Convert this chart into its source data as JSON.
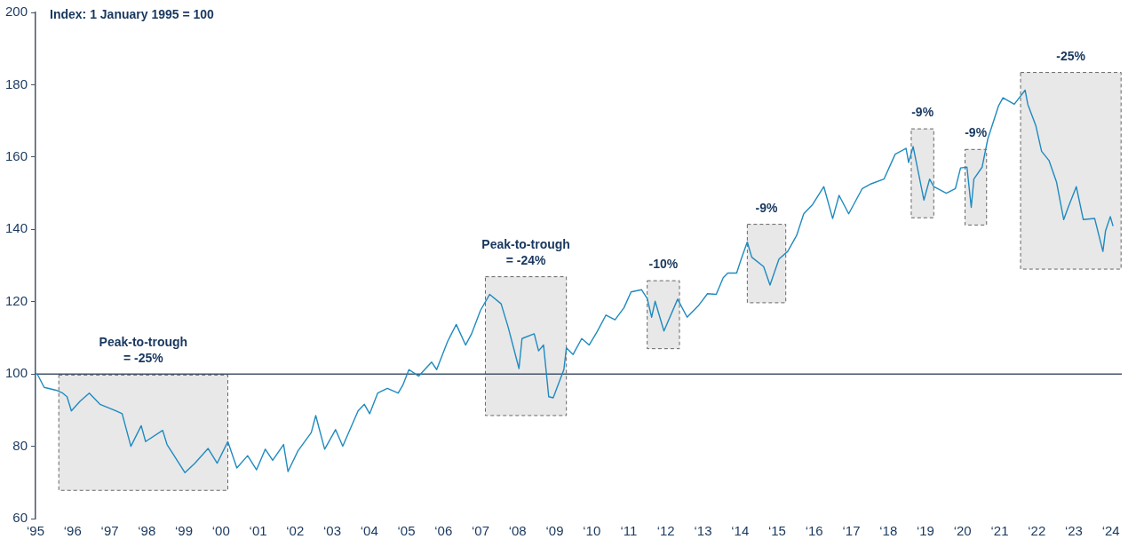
{
  "chart_data": {
    "type": "line",
    "title": "Index: 1 January 1995 = 100",
    "x": [
      "1995-01-01",
      "1995-01-19",
      "1995-03-27",
      "1995-07-23",
      "1995-09-20",
      "1995-11-07",
      "1995-12-20",
      "1996-03-13",
      "1996-06-13",
      "1996-09-27",
      "1997-03-02",
      "1997-05-03",
      "1997-07-28",
      "1997-11-07",
      "1997-12-20",
      "1998-06-06",
      "1998-07-19",
      "1999-01-12",
      "1999-04-19",
      "1999-08-28",
      "1999-11-25",
      "2000-03-09",
      "2000-06-06",
      "2000-09-20",
      "2000-12-17",
      "2001-03-13",
      "2001-05-25",
      "2001-09-09",
      "2001-10-23",
      "2002-01-28",
      "2002-06-09",
      "2002-07-23",
      "2002-10-19",
      "2003-02-03",
      "2003-04-15",
      "2003-09-13",
      "2003-11-14",
      "2004-01-05",
      "2004-03-24",
      "2004-06-27",
      "2004-10-12",
      "2004-11-25",
      "2005-01-26",
      "2005-05-03",
      "2005-09-06",
      "2005-10-26",
      "2006-02-11",
      "2006-05-07",
      "2006-08-07",
      "2006-10-05",
      "2007-01-01",
      "2007-04-01",
      "2007-07-23",
      "2007-10-01",
      "2008-01-15",
      "2008-02-14",
      "2008-06-13",
      "2008-07-26",
      "2008-09-13",
      "2008-11-03",
      "2008-12-17",
      "2009-04-01",
      "2009-04-26",
      "2009-07-01",
      "2009-09-24",
      "2009-12-06",
      "2010-02-21",
      "2010-05-21",
      "2010-08-18",
      "2010-11-14",
      "2011-01-23",
      "2011-05-07",
      "2011-07-01",
      "2011-08-14",
      "2011-09-17",
      "2011-12-13",
      "2012-04-26",
      "2012-07-28",
      "2012-11-14",
      "2013-02-14",
      "2013-05-11",
      "2013-07-19",
      "2013-09-02",
      "2013-11-28",
      "2014-01-12",
      "2014-03-13",
      "2014-04-26",
      "2014-08-21",
      "2014-10-23",
      "2015-01-19",
      "2015-04-15",
      "2015-07-12",
      "2015-09-20",
      "2015-12-17",
      "2016-04-05",
      "2016-07-01",
      "2016-09-02",
      "2016-12-06",
      "2017-04-19",
      "2017-07-15",
      "2017-11-18",
      "2018-03-09",
      "2018-06-24",
      "2018-07-19",
      "2018-09-02",
      "2018-12-17",
      "2019-02-11",
      "2019-03-24",
      "2019-07-26",
      "2019-10-23",
      "2019-12-13",
      "2020-02-14",
      "2020-03-27",
      "2020-04-22",
      "2020-07-12",
      "2020-09-06",
      "2020-12-20",
      "2021-02-03",
      "2021-05-25",
      "2021-09-09",
      "2021-10-05",
      "2021-12-24",
      "2022-02-18",
      "2022-05-03",
      "2022-07-15",
      "2022-09-24",
      "2022-11-07",
      "2023-01-26",
      "2023-04-05",
      "2023-07-26",
      "2023-10-15",
      "2023-11-10",
      "2023-12-27",
      "2024-01-23"
    ],
    "series": [
      {
        "color": "#1f8ac0",
        "values": [
          100,
          99.9,
          96.3,
          95.5,
          94.8,
          93.7,
          89.8,
          92.4,
          94.7,
          91.6,
          89.8,
          89.0,
          80.0,
          85.7,
          81.3,
          84.4,
          80.5,
          72.7,
          75.3,
          79.4,
          75.3,
          81.3,
          74.0,
          77.4,
          73.5,
          79.2,
          76.1,
          80.5,
          73.0,
          78.7,
          83.8,
          88.5,
          79.2,
          84.6,
          80.0,
          89.8,
          91.6,
          89.0,
          94.7,
          96.0,
          94.7,
          96.8,
          101.2,
          99.4,
          103.3,
          101.2,
          109.0,
          113.7,
          108.0,
          111.1,
          117.6,
          122.0,
          119.4,
          112.9,
          101.5,
          109.8,
          111.1,
          106.4,
          108.0,
          93.7,
          93.4,
          101.2,
          107.2,
          105.4,
          109.8,
          108.0,
          111.6,
          116.3,
          115.0,
          118.3,
          122.7,
          123.3,
          120.9,
          115.7,
          120.1,
          111.9,
          120.7,
          115.7,
          118.8,
          122.2,
          122.0,
          126.6,
          127.9,
          127.9,
          131.8,
          136.5,
          132.3,
          129.7,
          124.6,
          131.8,
          133.9,
          138.3,
          144.3,
          146.9,
          151.8,
          143.0,
          149.4,
          144.3,
          151.3,
          152.6,
          153.9,
          160.8,
          162.4,
          158.5,
          162.9,
          148.1,
          153.9,
          151.8,
          150.0,
          151.3,
          157.0,
          157.2,
          146.1,
          153.9,
          157.2,
          165.0,
          174.1,
          176.4,
          174.6,
          178.5,
          174.6,
          168.6,
          161.6,
          159.0,
          153.1,
          142.7,
          146.1,
          151.8,
          142.7,
          143.0,
          133.9,
          139.6,
          143.5,
          140.9
        ]
      }
    ],
    "xlim": [
      "1995-01-01",
      "2024-04-18"
    ],
    "xticks": [
      {
        "value": "1995",
        "label": "‘95"
      },
      {
        "value": "1996",
        "label": "‘96"
      },
      {
        "value": "1997",
        "label": "‘97"
      },
      {
        "value": "1998",
        "label": "‘98"
      },
      {
        "value": "1999",
        "label": "‘99"
      },
      {
        "value": "2000",
        "label": "‘00"
      },
      {
        "value": "2001",
        "label": "‘01"
      },
      {
        "value": "2002",
        "label": "‘02"
      },
      {
        "value": "2003",
        "label": "‘03"
      },
      {
        "value": "2004",
        "label": "‘04"
      },
      {
        "value": "2005",
        "label": "‘05"
      },
      {
        "value": "2006",
        "label": "‘06"
      },
      {
        "value": "2007",
        "label": "‘07"
      },
      {
        "value": "2008",
        "label": "‘08"
      },
      {
        "value": "2009",
        "label": "‘09"
      },
      {
        "value": "2010",
        "label": "‘10"
      },
      {
        "value": "2011",
        "label": "‘11"
      },
      {
        "value": "2012",
        "label": "‘12"
      },
      {
        "value": "2013",
        "label": "‘13"
      },
      {
        "value": "2014",
        "label": "‘14"
      },
      {
        "value": "2015",
        "label": "‘15"
      },
      {
        "value": "2016",
        "label": "‘16"
      },
      {
        "value": "2017",
        "label": "‘17"
      },
      {
        "value": "2018",
        "label": "‘18"
      },
      {
        "value": "2019",
        "label": "‘19"
      },
      {
        "value": "2020",
        "label": "‘20"
      },
      {
        "value": "2021",
        "label": "‘21"
      },
      {
        "value": "2022",
        "label": "‘22"
      },
      {
        "value": "2023",
        "label": "‘23"
      },
      {
        "value": "2024",
        "label": "‘24"
      }
    ],
    "ylim": [
      60,
      200
    ],
    "yticks": [
      60,
      80,
      100,
      120,
      140,
      160,
      180,
      200
    ],
    "grid": false,
    "legend": false,
    "marker": "none",
    "line_style": "solid",
    "ref_lines": [
      {
        "axis": "y",
        "value": 100,
        "color": "#44546a"
      }
    ],
    "bands": [
      {
        "axis": "x",
        "from": "1995-08-18",
        "to": "2000-03-09",
        "label": "Peak-to-trough\n= -25%",
        "color": "#e8e8e8"
      },
      {
        "axis": "x",
        "from": "2007-02-18",
        "to": "2009-04-26",
        "label": "Peak-to-trough\n= -24%",
        "color": "#e8e8e8"
      },
      {
        "axis": "x",
        "from": "2011-07-01",
        "to": "2012-05-14",
        "label": "-10%",
        "color": "#e8e8e8"
      },
      {
        "axis": "x",
        "from": "2014-03-13",
        "to": "2015-03-27",
        "label": "-9%",
        "color": "#e8e8e8"
      },
      {
        "axis": "x",
        "from": "2018-08-14",
        "to": "2019-03-24",
        "label": "-9%",
        "color": "#e8e8e8"
      },
      {
        "axis": "x",
        "from": "2020-01-26",
        "to": "2020-08-25",
        "label": "-9%",
        "color": "#e8e8e8"
      },
      {
        "axis": "x",
        "from": "2021-07-26",
        "to": "2024-04-11",
        "label": "-25%",
        "color": "#e8e8e8"
      }
    ]
  }
}
